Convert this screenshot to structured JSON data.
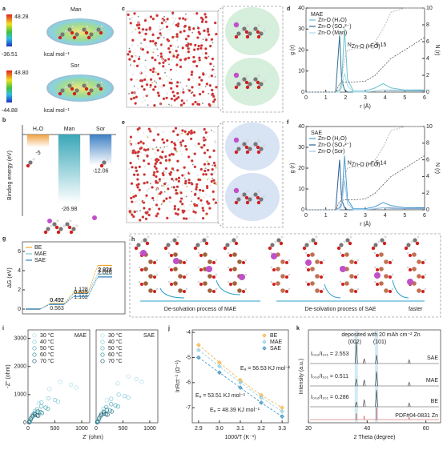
{
  "panel_labels": [
    "a",
    "b",
    "c",
    "d",
    "e",
    "f",
    "g",
    "h",
    "i",
    "j",
    "k"
  ],
  "a": {
    "man": {
      "max": "48.28",
      "min": "-36.51",
      "name": "Man",
      "unit": "kcal mol⁻¹"
    },
    "sor": {
      "max": "48.80",
      "min": "-44.88",
      "name": "Sor",
      "unit": "kcal mol⁻¹"
    }
  },
  "h": {
    "captions": [
      "De-solvation process of MAE",
      "De-solvation process of SAE"
    ],
    "note": "faster"
  },
  "chart_data": [
    {
      "type": "bar",
      "ylabel": "Binding energy (eV)",
      "categories": [
        "H₂O",
        "Man",
        "Sor"
      ],
      "values": [
        -5,
        -26.98,
        -12.06
      ],
      "colors": [
        "#f0a040",
        "#3aa7b8",
        "#3d7fc4"
      ],
      "ylim": [
        -32,
        0
      ]
    },
    {
      "type": "line",
      "title": "MAE",
      "xlabel": "r (Å)",
      "ylabel": "g (r)",
      "y2label": "N (r)",
      "x": [
        0,
        1,
        1.5,
        1.7,
        1.8,
        1.95,
        2.1,
        2.4,
        3,
        3.5,
        3.9,
        4.3,
        5,
        6
      ],
      "xlim": [
        0,
        6
      ],
      "xticks": [
        0,
        1,
        2,
        3,
        4,
        5,
        6
      ],
      "ylim": [
        0,
        40
      ],
      "yticks": [
        0,
        10,
        20,
        30,
        40
      ],
      "y2lim": [
        0,
        10
      ],
      "y2ticks": [
        0,
        2,
        4,
        6,
        8,
        10
      ],
      "legend": "upper left",
      "series": [
        {
          "name": "Zn-O (H₂O)",
          "color": "#6cc3d1",
          "values": [
            0,
            0,
            0,
            1,
            4,
            30,
            6,
            0.5,
            0.5,
            2,
            4,
            2,
            1,
            1
          ]
        },
        {
          "name": "Zn-O (SO₄²⁻)",
          "color": "#2c6f93",
          "values": [
            0,
            0,
            0,
            27,
            6,
            1,
            0,
            0,
            0,
            0.5,
            1,
            0.8,
            0.6,
            0.7
          ]
        },
        {
          "name": "Zn-O (Man)",
          "color": "#a9dbe5",
          "values": [
            0,
            0,
            0,
            0,
            2,
            9,
            3,
            0,
            0,
            0.5,
            1,
            0.6,
            0.5,
            0.5
          ]
        },
        {
          "color": "#aaaaaa",
          "dash": true,
          "axis": "y2",
          "values": [
            0,
            0,
            0,
            0.3,
            1.5,
            4,
            5,
            5.15,
            5.2,
            6,
            7.5,
            9.5,
            10,
            10
          ]
        },
        {
          "color": "#555555",
          "dash": true,
          "axis": "y2",
          "values": [
            0,
            0,
            0,
            1,
            1.1,
            1.2,
            1.2,
            1.2,
            1.3,
            2,
            3,
            4,
            5,
            6.5
          ]
        }
      ],
      "annotation": {
        "symbol": "N",
        "sub": "Zn-O (H₂O)",
        "text": "= 5.15"
      }
    },
    {
      "type": "line",
      "title": "SAE",
      "xlabel": "r (Å)",
      "ylabel": "g (r)",
      "y2label": "N (r)",
      "x": [
        0,
        1,
        1.5,
        1.7,
        1.8,
        1.95,
        2.1,
        2.4,
        3,
        3.5,
        3.9,
        4.3,
        5,
        6
      ],
      "xlim": [
        0,
        6
      ],
      "xticks": [
        0,
        1,
        2,
        3,
        4,
        5,
        6
      ],
      "ylim": [
        0,
        40
      ],
      "yticks": [
        0,
        10,
        20,
        30,
        40
      ],
      "y2lim": [
        0,
        10
      ],
      "y2ticks": [
        0,
        2,
        4,
        6,
        8,
        10
      ],
      "legend": "upper left",
      "series": [
        {
          "name": "Zn-O (H₂O)",
          "color": "#4a9bd0",
          "values": [
            0,
            0,
            0,
            1,
            3,
            26,
            5,
            0.5,
            0.5,
            1.5,
            3.5,
            2,
            1,
            1
          ]
        },
        {
          "name": "Zn-O (SO₄²⁻)",
          "color": "#2a5d9a",
          "values": [
            0,
            0,
            0,
            24,
            5,
            1,
            0,
            0,
            0,
            0.5,
            1,
            0.8,
            0.6,
            0.7
          ]
        },
        {
          "name": "Zn-O (Sor)",
          "color": "#9cc8ea",
          "values": [
            0,
            0,
            0,
            0,
            2,
            14,
            3,
            0,
            0,
            0.5,
            1,
            0.6,
            0.5,
            0.5
          ]
        },
        {
          "color": "#aaaaaa",
          "dash": true,
          "axis": "y2",
          "values": [
            0,
            0,
            0,
            0.3,
            1.5,
            4,
            5,
            5.14,
            5.2,
            6,
            7.5,
            9.5,
            10,
            10
          ]
        },
        {
          "color": "#555555",
          "dash": true,
          "axis": "y2",
          "values": [
            0,
            0,
            0,
            1,
            1.1,
            1.2,
            1.2,
            1.2,
            1.3,
            2,
            3,
            4,
            5,
            6.5
          ]
        }
      ],
      "annotation": {
        "symbol": "N",
        "sub": "Zn-O (H₂O)",
        "text": "= 5.14"
      }
    },
    {
      "type": "step",
      "ylabel": "ΔG (eV)",
      "ylim": [
        -0.5,
        7
      ],
      "yticks": [
        0,
        2,
        4,
        6
      ],
      "legend": "upper left",
      "series": [
        {
          "name": "BE",
          "color": "#f5a623",
          "values": [
            0.563,
            1.162,
            2.823
          ]
        },
        {
          "name": "MAE",
          "color": "#7ec8d8",
          "values": [
            0.497,
            1.128,
            2.024
          ]
        },
        {
          "name": "SAE",
          "color": "#2f80c0",
          "values": [
            0.492,
            0.825,
            2.026
          ]
        }
      ]
    },
    {
      "type": "scatter",
      "title": "MAE",
      "xlabel": "Z' (ohm)",
      "ylabel": "-Z'' (ohm)",
      "xlim": [
        0,
        1150
      ],
      "xticks": [
        0,
        500,
        1000
      ],
      "ylim": [
        0,
        3300
      ],
      "yticks": [
        0,
        1000,
        2000,
        3000
      ],
      "legend": "upper left",
      "marker": "circle",
      "series": [
        {
          "name": "30 °C",
          "color": "#a9dfe6",
          "x": [
            50,
            200,
            400,
            600,
            800,
            900
          ],
          "values": [
            100,
            700,
            1200,
            1450,
            1350,
            1250
          ]
        },
        {
          "name": "40 °C",
          "color": "#7cc7d3",
          "x": [
            40,
            130,
            250,
            380,
            500,
            560
          ],
          "values": [
            60,
            420,
            720,
            870,
            810,
            750
          ]
        },
        {
          "name": "50 °C",
          "color": "#4fa9bb",
          "x": [
            30,
            90,
            170,
            250,
            330,
            370
          ],
          "values": [
            40,
            280,
            480,
            580,
            540,
            500
          ]
        },
        {
          "name": "60 °C",
          "color": "#2e8597",
          "x": [
            25,
            70,
            120,
            180,
            230,
            260
          ],
          "values": [
            30,
            200,
            340,
            400,
            380,
            350
          ]
        },
        {
          "name": "70 °C",
          "color": "#1a5e6e",
          "x": [
            20,
            50,
            90,
            130,
            170,
            190
          ],
          "values": [
            20,
            140,
            240,
            290,
            270,
            250
          ]
        }
      ]
    },
    {
      "type": "scatter",
      "title": "SAE",
      "xlim": [
        0,
        1150
      ],
      "xticks": [
        0,
        500,
        1000
      ],
      "ylim": [
        0,
        3300
      ],
      "legend": "upper left",
      "marker": "circle",
      "series": [
        {
          "name": "30 °C",
          "color": "#a9dfe6",
          "x": [
            50,
            200,
            400,
            600,
            750,
            850
          ],
          "values": [
            100,
            800,
            1400,
            1650,
            1550,
            1450
          ]
        },
        {
          "name": "40 °C",
          "color": "#7cc7d3",
          "x": [
            40,
            140,
            280,
            420,
            530,
            600
          ],
          "values": [
            60,
            500,
            850,
            1000,
            950,
            900
          ]
        },
        {
          "name": "50 °C",
          "color": "#4fa9bb",
          "x": [
            30,
            100,
            190,
            280,
            360,
            410
          ],
          "values": [
            40,
            320,
            560,
            660,
            620,
            580
          ]
        },
        {
          "name": "60 °C",
          "color": "#2e8597",
          "x": [
            25,
            75,
            140,
            200,
            260,
            290
          ],
          "values": [
            30,
            230,
            390,
            460,
            430,
            400
          ]
        },
        {
          "name": "70 °C",
          "color": "#1a5e6e",
          "x": [
            20,
            55,
            100,
            145,
            185,
            210
          ],
          "values": [
            20,
            160,
            280,
            330,
            310,
            290
          ]
        }
      ]
    },
    {
      "type": "scatter",
      "fit": true,
      "marker": "diamond",
      "ylabel": "lnRct⁻¹ (Ω⁻¹)",
      "xlabel": "1000/T (K⁻¹)",
      "xlim": [
        2.87,
        3.33
      ],
      "xticks": [
        2.9,
        {
          "value": 3,
          "label": "3.0"
        },
        3.1,
        3.2,
        3.3
      ],
      "ylim": [
        -7.6,
        -3.9
      ],
      "yticks": [
        -4,
        -5,
        -6,
        -7
      ],
      "legend": "upper right",
      "x": [
        2.9,
        3,
        3.1,
        3.2,
        3.3
      ],
      "series": [
        {
          "name": "BE",
          "color": "#f5b041",
          "values": [
            -4.5,
            -5.2,
            -5.9,
            -6.5,
            -7.0
          ]
        },
        {
          "name": "MAE",
          "color": "#8fcfdc",
          "values": [
            -4.7,
            -5.35,
            -6.0,
            -6.6,
            -7.15
          ]
        },
        {
          "name": "SAE",
          "color": "#3a8fc0",
          "values": [
            -5.0,
            -5.6,
            -6.2,
            -6.8,
            -7.35
          ]
        }
      ],
      "annotations": [
        "Eₐ = 56.53 KJ mol⁻¹",
        "Eₐ = 53.51 KJ mol⁻¹",
        "Eₐ = 48.39 KJ mol⁻¹"
      ]
    },
    {
      "type": "peaks",
      "ylabel": "Intensity (a.u.)",
      "xlabel": "2 Theta (degree)",
      "xlim": [
        20,
        65
      ],
      "xticks": [
        20,
        40,
        60
      ],
      "ylim": [
        0,
        1
      ],
      "note": "deposited with 20 mAh cm⁻² Zn",
      "peak_labels": [
        "(002)",
        "(101)"
      ],
      "annotations": [
        "I₀₀₂/I₁₀₁ = 2.553",
        "I₀₀₂/I₁₀₁ = 0.511",
        "I₀₀₂/I₁₀₁ = 0.286"
      ],
      "series": [
        {
          "name": "SAE",
          "color": "#444444",
          "x": [
            36.3,
            39,
            43.2,
            54.3
          ],
          "values": [
            0.9,
            0.2,
            0.35,
            0.15
          ]
        },
        {
          "name": "MAE",
          "color": "#444444",
          "x": [
            36.3,
            39,
            43.2,
            54.3
          ],
          "values": [
            0.3,
            0.25,
            0.6,
            0.15
          ]
        },
        {
          "name": "BE",
          "color": "#444444",
          "x": [
            36.3,
            39,
            43.2,
            54.3
          ],
          "values": [
            0.2,
            0.3,
            0.7,
            0.15
          ]
        },
        {
          "name": "PDF#04-0831 Zn",
          "color": "#d04040",
          "x": [
            36.3,
            39,
            43.2,
            54.3
          ],
          "values": [
            0.25,
            0.15,
            0.5,
            0.1
          ]
        }
      ]
    }
  ]
}
